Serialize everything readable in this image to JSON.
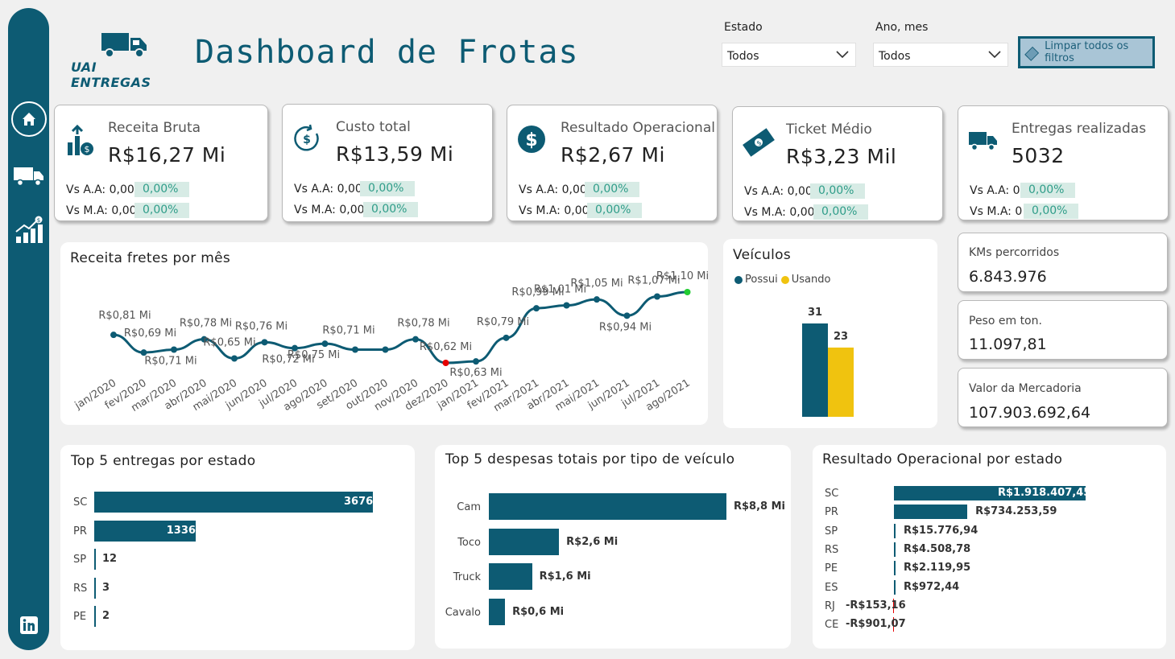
{
  "brand": {
    "name": "UAI ENTREGAS",
    "color": "#0d5b73"
  },
  "header": {
    "title": "Dashboard de Frotas"
  },
  "filters": {
    "estado": {
      "label": "Estado",
      "value": "Todos"
    },
    "ano_mes": {
      "label": "Ano, mes",
      "value": "Todos"
    },
    "clear_label": "Limpar todos os filtros"
  },
  "sidebar": {
    "items": [
      {
        "icon": "home-icon"
      },
      {
        "icon": "truck-icon"
      },
      {
        "icon": "growth-chart-icon"
      },
      {
        "icon": "linkedin-icon"
      }
    ]
  },
  "kpis": [
    {
      "title": "Receita Bruta",
      "value": "R$16,27 Mi",
      "aa_label": "Vs A.A: 0,00",
      "aa_pct": "0,00%",
      "ma_label": "Vs M.A: 0,00",
      "ma_pct": "0,00%",
      "icon": "revenue-growth-icon"
    },
    {
      "title": "Custo total",
      "value": "R$13,59 Mi",
      "aa_label": "Vs A.A: 0,00",
      "aa_pct": "0,00%",
      "ma_label": "Vs M.A: 0,00",
      "ma_pct": "0,00%",
      "icon": "cost-icon"
    },
    {
      "title": "Resultado Operacional",
      "value": "R$2,67 Mi",
      "aa_label": "Vs A.A: 0,00",
      "aa_pct": "0,00%",
      "ma_label": "Vs M.A: 0,00",
      "ma_pct": "0,00%",
      "icon": "dollar-icon"
    },
    {
      "title": "Ticket Médio",
      "value": "R$3,23 Mil",
      "aa_label": "Vs A.A: 0,00",
      "aa_pct": "0,00%",
      "ma_label": "Vs M.A: 0,00",
      "ma_pct": "0,00%",
      "icon": "money-icon"
    },
    {
      "title": "Entregas realizadas",
      "value": "5032",
      "aa_label": "Vs A.A: 0",
      "aa_pct": "0,00%",
      "ma_label": "Vs M.A: 0",
      "ma_pct": "0,00%",
      "icon": "truck-icon"
    }
  ],
  "side_kpis": [
    {
      "title": "KMs percorridos",
      "value": "6.843.976"
    },
    {
      "title": "Peso em ton.",
      "value": "11.097,81"
    },
    {
      "title": "Valor da Mercadoria",
      "value": "107.903.692,64"
    }
  ],
  "colors": {
    "primary": "#0d5b73",
    "accent": "#f0c30f",
    "min": "#e60000",
    "max": "#22cc33",
    "pct_text": "#2f9d89",
    "pct_bg": "#d7ebe5"
  },
  "chart_data": [
    {
      "type": "line",
      "title": "Receita fretes por mês",
      "categories": [
        "jan/2020",
        "fev/2020",
        "mar/2020",
        "abr/2020",
        "mai/2020",
        "jun/2020",
        "jul/2020",
        "ago/2020",
        "set/2020",
        "out/2020",
        "nov/2020",
        "dez/2020",
        "jan/2021",
        "fev/2021",
        "mar/2021",
        "abr/2021",
        "mai/2021",
        "jun/2021",
        "jul/2021",
        "ago/2021"
      ],
      "x_labels": [
        "jan/2020",
        "fev/2020",
        "mar/2020",
        "abr/2020",
        "mai/2020",
        "jun/2020",
        "jul/2020",
        "ago/2020",
        "set/2020",
        "out/2020",
        "nov/2020",
        "dez/2020",
        "jan/2021",
        "fev/2021",
        "mar/2021",
        "abr/2021",
        "mai/2021",
        "jun/2021",
        "jul/2021",
        "ago/2021"
      ],
      "values": [
        0.81,
        0.69,
        0.71,
        0.78,
        0.65,
        0.76,
        0.72,
        0.75,
        0.71,
        0.71,
        0.78,
        0.62,
        0.63,
        0.79,
        0.99,
        1.01,
        1.05,
        0.94,
        1.07,
        1.1
      ],
      "labels": [
        "R$0,81 Mi",
        "R$0,69 Mi",
        "R$0,71 Mi",
        "R$0,78 Mi",
        "R$0,65 Mi",
        "R$0,76 Mi",
        "R$0,72 Mi",
        "R$0,75 Mi",
        "R$0,71 Mi",
        "R$0,71 Mi",
        "R$0,78 Mi",
        "R$0,62 Mi",
        "R$0,63 Mi",
        "R$0,79 Mi",
        "R$0,99 Mi",
        "R$1,01 Mi",
        "R$1,05 Mi",
        "R$0,94 Mi",
        "R$1,07 Mi",
        "R$1,10 Mi"
      ],
      "label_visible": [
        true,
        true,
        true,
        true,
        true,
        true,
        true,
        true,
        true,
        false,
        true,
        true,
        true,
        true,
        true,
        true,
        true,
        true,
        true,
        true
      ],
      "ylim": [
        0.5,
        1.2
      ]
    },
    {
      "type": "bar",
      "title": "Veículos",
      "categories": [
        ""
      ],
      "series": [
        {
          "name": "Possui",
          "values": [
            31
          ],
          "label": "31"
        },
        {
          "name": "Usando",
          "values": [
            23
          ],
          "label": "23"
        }
      ],
      "legend": "top-left",
      "ylim": [
        0,
        31
      ]
    },
    {
      "type": "bar",
      "title": "Top 5 entregas por estado",
      "orientation": "horizontal",
      "categories": [
        "SC",
        "PR",
        "SP",
        "RS",
        "PE"
      ],
      "values": [
        3676,
        1336,
        12,
        3,
        2
      ],
      "labels": [
        "3676",
        "1336",
        "12",
        "3",
        "2"
      ]
    },
    {
      "type": "bar",
      "title": "Top 5 despesas totais por tipo de veículo",
      "orientation": "horizontal",
      "categories": [
        "Cam",
        "Toco",
        "Truck",
        "Cavalo"
      ],
      "values": [
        8.8,
        2.6,
        1.6,
        0.6
      ],
      "labels": [
        "R$8,8 Mi",
        "R$2,6 Mi",
        "R$1,6 Mi",
        "R$0,6 Mi"
      ]
    },
    {
      "type": "bar",
      "title": "Resultado Operacional por estado",
      "orientation": "horizontal",
      "categories": [
        "SC",
        "PR",
        "SP",
        "RS",
        "PE",
        "ES",
        "RJ",
        "CE"
      ],
      "values": [
        1918407.45,
        734253.59,
        15776.94,
        4508.78,
        2119.95,
        972.44,
        -153.16,
        -901.07
      ],
      "labels": [
        "R$1.918.407,45",
        "R$734.253,59",
        "R$15.776,94",
        "R$4.508,78",
        "R$2.119,95",
        "R$972,44",
        "-R$153,16",
        "-R$901,07"
      ]
    }
  ]
}
